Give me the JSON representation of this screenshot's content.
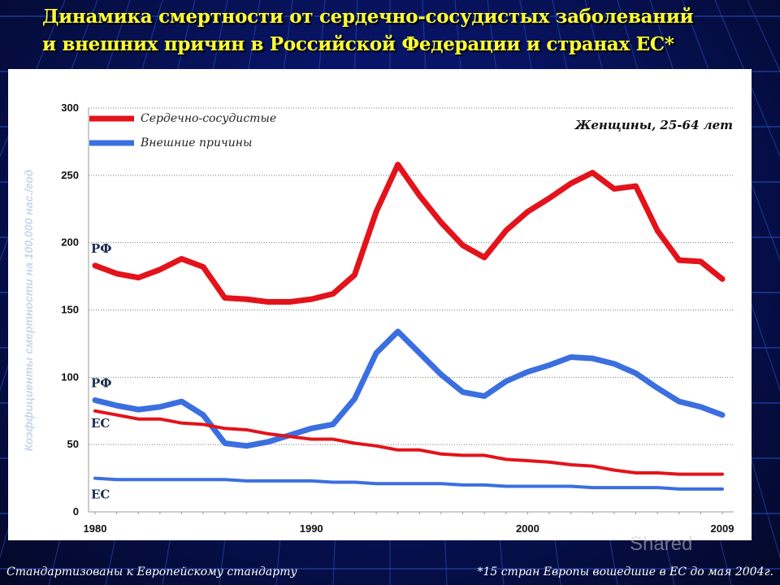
{
  "title_line1": "Динамика смертности от сердечно-сосудистых заболеваний",
  "title_line2": "и внешних причин в Российской Федерации и странах ЕС*",
  "footer_left": "Стандартизованы к Европейскому стандарту",
  "footer_right": "*15 стран Европы вошедшие в ЕС до мая 2004г.",
  "watermark": "Shared",
  "colors": {
    "cardio": "#e3131b",
    "external": "#3b6fe0",
    "title": "#ffff33"
  },
  "chart_data": {
    "type": "line",
    "annotation": "Женщины, 25-64 лет",
    "ylabel": "Коэффициенты смертности на 100,000 нас./год",
    "xlabel": "",
    "ylim": [
      0,
      300
    ],
    "yticks": [
      "0",
      "50",
      "100",
      "150",
      "200",
      "250",
      "300"
    ],
    "xticks": [
      "1980",
      "1990",
      "2000",
      "2009"
    ],
    "grid": "horizontal dotted",
    "legend": {
      "placement": "top-left",
      "entries": [
        "Сердечно-сосудистые",
        "Внешние причины"
      ]
    },
    "x": [
      1980,
      1981,
      1982,
      1983,
      1984,
      1985,
      1986,
      1987,
      1988,
      1989,
      1990,
      1991,
      1992,
      1993,
      1994,
      1995,
      1996,
      1997,
      1998,
      1999,
      2000,
      2001,
      2002,
      2003,
      2004,
      2005,
      2006,
      2007,
      2008,
      2009
    ],
    "series": [
      {
        "name": "Сердечно-сосудистые",
        "label": "РФ",
        "kind": "cardio",
        "values": [
          183,
          177,
          174,
          180,
          188,
          182,
          159,
          158,
          156,
          156,
          158,
          162,
          176,
          223,
          258,
          235,
          215,
          198,
          189,
          209,
          223,
          233,
          244,
          252,
          240,
          242,
          209,
          187,
          186,
          173
        ]
      },
      {
        "name": "Внешние причины",
        "label": "РФ",
        "kind": "external",
        "values": [
          83,
          79,
          76,
          78,
          82,
          72,
          51,
          49,
          52,
          57,
          62,
          65,
          84,
          118,
          134,
          118,
          102,
          89,
          86,
          97,
          104,
          109,
          115,
          114,
          110,
          103,
          92,
          82,
          78,
          72
        ]
      },
      {
        "name": "Сердечно-сосудистые",
        "label": "ЕС",
        "kind": "cardio",
        "values": [
          75,
          72,
          69,
          69,
          66,
          65,
          62,
          61,
          58,
          56,
          54,
          54,
          51,
          49,
          46,
          46,
          43,
          42,
          42,
          39,
          38,
          37,
          35,
          34,
          31,
          29,
          29,
          28,
          28,
          28
        ]
      },
      {
        "name": "Внешние причины",
        "label": "ЕС",
        "kind": "external",
        "values": [
          25,
          24,
          24,
          24,
          24,
          24,
          24,
          23,
          23,
          23,
          23,
          22,
          22,
          21,
          21,
          21,
          21,
          20,
          20,
          19,
          19,
          19,
          19,
          18,
          18,
          18,
          18,
          17,
          17,
          17
        ]
      }
    ]
  }
}
